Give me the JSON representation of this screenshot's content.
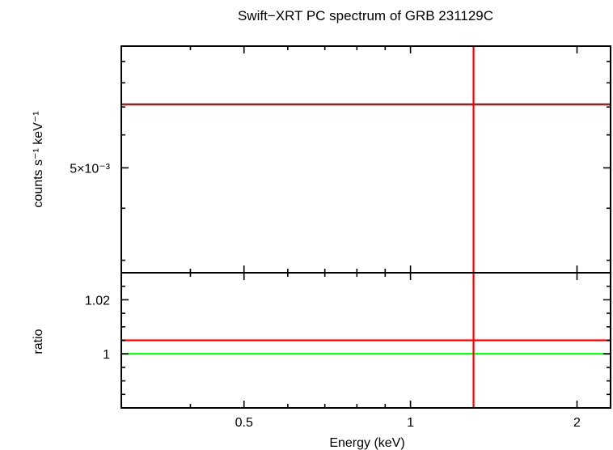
{
  "chart_data": {
    "type": "line",
    "title": "Swift−XRT PC spectrum of GRB 231129C",
    "xlabel": "Energy (keV)",
    "xscale": "log",
    "xlim": [
      0.3,
      2.3
    ],
    "xticks": [
      {
        "value": 0.5,
        "label": "0.5"
      },
      {
        "value": 1,
        "label": "1"
      },
      {
        "value": 2,
        "label": "2"
      }
    ],
    "panels": [
      {
        "id": "spectrum",
        "ylabel": "counts s⁻¹ keV⁻¹",
        "yscale": "log",
        "ylim": [
          0.0028,
          0.0098
        ],
        "yticks": [
          {
            "value": 0.005,
            "label": "5×10⁻³"
          }
        ],
        "series": [
          {
            "type": "hline",
            "y": 0.0071,
            "colors": [
              "#000000",
              "#ff0000"
            ]
          },
          {
            "type": "vline",
            "x": 1.3,
            "color": "#ff0000"
          }
        ]
      },
      {
        "id": "ratio",
        "ylabel": "ratio",
        "yscale": "linear",
        "ylim": [
          0.98,
          1.03
        ],
        "yticks": [
          {
            "value": 1,
            "label": "1"
          },
          {
            "value": 1.02,
            "label": "1.02"
          }
        ],
        "series": [
          {
            "type": "hline",
            "y": 1.0,
            "color": "#00ff00"
          },
          {
            "type": "hline",
            "y": 1.005,
            "color": "#ff0000"
          },
          {
            "type": "vline",
            "x": 1.3,
            "color": "#ff0000"
          }
        ]
      }
    ]
  }
}
